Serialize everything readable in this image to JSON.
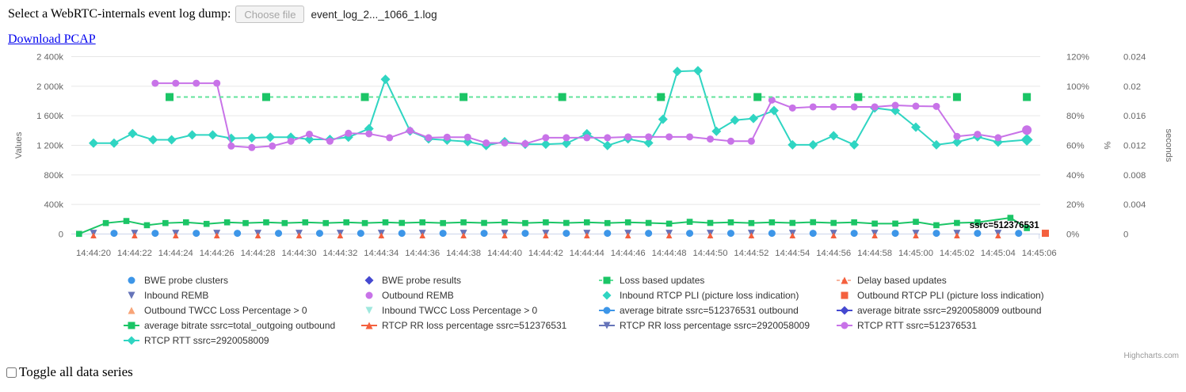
{
  "header": {
    "label": "Select a WebRTC-internals event log dump:",
    "choose_file_label": "Choose file",
    "filename": "event_log_2..._1066_1.log",
    "download_link": "Download PCAP"
  },
  "toggle": {
    "label": "Toggle all data series"
  },
  "credits": "Highcharts.com",
  "chart_data": {
    "type": "line",
    "title": "",
    "x_axis": {
      "labels": [
        "14:44:20",
        "14:44:22",
        "14:44:24",
        "14:44:26",
        "14:44:28",
        "14:44:30",
        "14:44:32",
        "14:44:34",
        "14:44:36",
        "14:44:38",
        "14:44:40",
        "14:44:42",
        "14:44:44",
        "14:44:46",
        "14:44:48",
        "14:44:50",
        "14:44:52",
        "14:44:54",
        "14:44:56",
        "14:44:58",
        "14:45:00",
        "14:45:02",
        "14:45:04",
        "14:45:06"
      ],
      "start_seconds": 20,
      "step_seconds": 2
    },
    "y_axes": [
      {
        "title": "Values",
        "ticks": [
          "0",
          "400k",
          "800k",
          "1 200k",
          "1 600k",
          "2 000k",
          "2 400k"
        ],
        "range": [
          0,
          2400000
        ],
        "side": "left"
      },
      {
        "title": "%",
        "ticks": [
          "0%",
          "20%",
          "40%",
          "60%",
          "80%",
          "100%",
          "120%"
        ],
        "range": [
          0,
          120
        ],
        "side": "right"
      },
      {
        "title": "seconds",
        "ticks": [
          "0",
          "0.004",
          "0.008",
          "0.012",
          "0.016",
          "0.02",
          "0.024"
        ],
        "range": [
          0,
          0.024
        ],
        "side": "right"
      }
    ],
    "grid": true,
    "legend_position": "bottom",
    "annotations": [
      {
        "text": "ssrc=512376531",
        "t": 66.0,
        "v": 125,
        "anchor": "end"
      }
    ],
    "series": [
      {
        "name": "RTCP RTT ssrc=2920058009",
        "color": "#2FD5C2",
        "marker": "diamond",
        "marker_size": 4.5,
        "line": "solid",
        "axis": "seconds",
        "points": [
          [
            20,
            1230
          ],
          [
            21,
            1230
          ],
          [
            21.9,
            1360
          ],
          [
            22.9,
            1275
          ],
          [
            23.8,
            1275
          ],
          [
            24.8,
            1340
          ],
          [
            25.8,
            1340
          ],
          [
            26.7,
            1295
          ],
          [
            27.7,
            1300
          ],
          [
            28.6,
            1310
          ],
          [
            29.6,
            1310
          ],
          [
            30.5,
            1280
          ],
          [
            31.5,
            1280
          ],
          [
            32.4,
            1310
          ],
          [
            33.4,
            1425
          ],
          [
            34.2,
            2093
          ],
          [
            35.4,
            1393
          ],
          [
            36.3,
            1287
          ],
          [
            37.2,
            1269
          ],
          [
            38.2,
            1250
          ],
          [
            39.1,
            1197
          ],
          [
            40,
            1250
          ],
          [
            41,
            1215
          ],
          [
            42,
            1215
          ],
          [
            43,
            1225
          ],
          [
            44,
            1357
          ],
          [
            45,
            1197
          ],
          [
            46,
            1287
          ],
          [
            47,
            1232
          ],
          [
            47.7,
            1552
          ],
          [
            48.4,
            2200
          ],
          [
            49.4,
            2210
          ],
          [
            50.3,
            1390
          ],
          [
            51.2,
            1540
          ],
          [
            52.1,
            1563
          ],
          [
            53.1,
            1670
          ],
          [
            54,
            1207
          ],
          [
            55,
            1207
          ],
          [
            56,
            1330
          ],
          [
            57,
            1207
          ],
          [
            58,
            1705
          ],
          [
            59,
            1670
          ],
          [
            60,
            1445
          ],
          [
            61,
            1207
          ],
          [
            62,
            1243
          ],
          [
            63,
            1315
          ],
          [
            64,
            1243
          ],
          [
            65.4,
            1275
          ]
        ],
        "last_big": true
      },
      {
        "name": "RTCP RTT ssrc=512376531",
        "color": "#C873E8",
        "marker": "circle",
        "marker_size": 4.5,
        "line": "solid",
        "axis": "seconds",
        "points": [
          [
            23,
            2040
          ],
          [
            24,
            2040
          ],
          [
            25,
            2040
          ],
          [
            26,
            2040
          ],
          [
            26.7,
            1190
          ],
          [
            27.7,
            1170
          ],
          [
            28.7,
            1190
          ],
          [
            29.6,
            1255
          ],
          [
            30.5,
            1350
          ],
          [
            31.5,
            1256
          ],
          [
            32.4,
            1363
          ],
          [
            33.4,
            1356
          ],
          [
            34.4,
            1303
          ],
          [
            35.4,
            1399
          ],
          [
            36.3,
            1303
          ],
          [
            37.2,
            1310
          ],
          [
            38.2,
            1310
          ],
          [
            39.1,
            1232
          ],
          [
            40,
            1232
          ],
          [
            41,
            1221
          ],
          [
            42,
            1303
          ],
          [
            43,
            1303
          ],
          [
            44,
            1303
          ],
          [
            45,
            1303
          ],
          [
            46,
            1314
          ],
          [
            47,
            1314
          ],
          [
            48,
            1314
          ],
          [
            49,
            1314
          ],
          [
            50,
            1285
          ],
          [
            51,
            1256
          ],
          [
            52,
            1256
          ],
          [
            53,
            1812
          ],
          [
            54,
            1705
          ],
          [
            55,
            1720
          ],
          [
            56,
            1720
          ],
          [
            57,
            1720
          ],
          [
            58,
            1720
          ],
          [
            59,
            1741
          ],
          [
            60,
            1730
          ],
          [
            61,
            1727
          ],
          [
            62,
            1321
          ],
          [
            63,
            1349
          ],
          [
            64,
            1303
          ],
          [
            65.4,
            1406
          ]
        ],
        "last_big": true
      },
      {
        "name": "Loss based updates",
        "color": "#1BC566",
        "line_color": "#62E39B",
        "marker": "square",
        "marker_size": 5,
        "line": "dashed",
        "axis": "values",
        "points": [
          [
            23.7,
            1853
          ],
          [
            28.4,
            1853
          ],
          [
            33.2,
            1853
          ],
          [
            38,
            1853
          ],
          [
            42.8,
            1853
          ],
          [
            47.6,
            1853
          ],
          [
            52.3,
            1853
          ],
          [
            57.2,
            1853
          ],
          [
            62,
            1853
          ]
        ]
      },
      {
        "name": "Loss based updates (last)",
        "color": "#1BC566",
        "marker": "square",
        "marker_size": 5,
        "line": "none",
        "axis": "values",
        "legend": false,
        "points": [
          [
            65.4,
            1853
          ]
        ]
      },
      {
        "name": "average bitrate ssrc=total_outgoing outbound",
        "color": "#1BC566",
        "marker": "square",
        "marker_size": 3.8,
        "line": "solid",
        "axis": "values",
        "points": [
          [
            19.3,
            2
          ],
          [
            20.6,
            148
          ],
          [
            21.6,
            176
          ],
          [
            22.6,
            119
          ],
          [
            23.5,
            148
          ],
          [
            24.5,
            158
          ],
          [
            25.5,
            137
          ],
          [
            26.5,
            158
          ],
          [
            27.4,
            148
          ],
          [
            28.4,
            158
          ],
          [
            29.3,
            148
          ],
          [
            30.3,
            158
          ],
          [
            31.3,
            148
          ],
          [
            32.3,
            158
          ],
          [
            33.2,
            148
          ],
          [
            34.2,
            158
          ],
          [
            35,
            150
          ],
          [
            36,
            158
          ],
          [
            37,
            148
          ],
          [
            38,
            158
          ],
          [
            39,
            150
          ],
          [
            40,
            158
          ],
          [
            41,
            148
          ],
          [
            42,
            158
          ],
          [
            43,
            150
          ],
          [
            44,
            158
          ],
          [
            45,
            148
          ],
          [
            46,
            158
          ],
          [
            47,
            150
          ],
          [
            48,
            140
          ],
          [
            49,
            165
          ],
          [
            50,
            150
          ],
          [
            51,
            158
          ],
          [
            52,
            148
          ],
          [
            53,
            158
          ],
          [
            54,
            150
          ],
          [
            55,
            160
          ],
          [
            56,
            150
          ],
          [
            57,
            158
          ],
          [
            58,
            141
          ],
          [
            59,
            141
          ],
          [
            60,
            165
          ],
          [
            61,
            119
          ],
          [
            62,
            150
          ],
          [
            63,
            158
          ],
          [
            64.6,
            219
          ],
          [
            65.4,
            80
          ]
        ]
      },
      {
        "name": "RTCP RR loss percentage ssrc=2920058009",
        "color": "#6674B9",
        "marker": "triangle-down",
        "marker_size": 4.5,
        "line": "none",
        "axis": "percent",
        "points": [
          [
            20,
            10
          ],
          [
            22,
            10
          ],
          [
            24,
            10
          ],
          [
            26,
            10
          ],
          [
            28,
            10
          ],
          [
            30,
            10
          ],
          [
            32,
            10
          ],
          [
            34,
            10
          ],
          [
            36,
            10
          ],
          [
            38,
            10
          ],
          [
            40,
            10
          ],
          [
            42,
            10
          ],
          [
            44,
            10
          ],
          [
            46,
            10
          ],
          [
            48,
            10
          ],
          [
            50,
            10
          ],
          [
            52,
            10
          ],
          [
            54,
            10
          ],
          [
            56,
            10
          ],
          [
            58,
            10
          ],
          [
            60,
            10
          ],
          [
            62,
            10
          ],
          [
            64,
            10
          ]
        ]
      },
      {
        "name": "RTCP RR loss percentage ssrc=512376531",
        "color": "#F4603E",
        "marker": "triangle",
        "marker_size": 3.8,
        "line": "none",
        "axis": "percent",
        "points": [
          [
            20,
            -18
          ],
          [
            22,
            -18
          ],
          [
            24,
            -18
          ],
          [
            26,
            -18
          ],
          [
            28,
            -18
          ],
          [
            30,
            -18
          ],
          [
            32,
            -18
          ],
          [
            34,
            -18
          ],
          [
            36,
            -18
          ],
          [
            38,
            -18
          ],
          [
            40,
            -18
          ],
          [
            42,
            -18
          ],
          [
            44,
            -18
          ],
          [
            46,
            -18
          ],
          [
            48,
            -18
          ],
          [
            50,
            -18
          ],
          [
            52,
            -18
          ],
          [
            54,
            -18
          ],
          [
            56,
            -18
          ],
          [
            58,
            -18
          ],
          [
            60,
            -18
          ],
          [
            62,
            -18
          ],
          [
            64,
            -18
          ]
        ]
      },
      {
        "name": "average bitrate ssrc=512376531 outbound",
        "color": "#3D96E8",
        "marker": "circle",
        "marker_size": 4.5,
        "line": "none",
        "axis": "values",
        "points": [
          [
            21,
            10
          ],
          [
            23,
            10
          ],
          [
            25,
            10
          ],
          [
            27,
            10
          ],
          [
            29,
            10
          ],
          [
            31,
            10
          ],
          [
            33,
            10
          ],
          [
            35,
            10
          ],
          [
            37,
            10
          ],
          [
            39,
            10
          ],
          [
            41,
            10
          ],
          [
            43,
            10
          ],
          [
            45,
            10
          ],
          [
            47,
            10
          ],
          [
            49,
            10
          ],
          [
            51,
            10
          ],
          [
            53,
            10
          ],
          [
            55,
            10
          ],
          [
            57,
            10
          ],
          [
            59,
            10
          ],
          [
            61,
            10
          ],
          [
            63,
            10
          ],
          [
            65,
            10
          ]
        ]
      },
      {
        "name": "Outbound RTCP PLI (picture loss indication)",
        "color": "#F4603E",
        "marker": "square",
        "marker_size": 4.5,
        "line": "none",
        "axis": "values",
        "legend": false,
        "points": [
          [
            66.3,
            10
          ]
        ]
      }
    ]
  },
  "legend": {
    "items": [
      {
        "label": "BWE probe clusters",
        "color": "#3D96E8",
        "marker": "circle",
        "line": "none"
      },
      {
        "label": "BWE probe results",
        "color": "#4549D0",
        "marker": "diamond",
        "line": "none"
      },
      {
        "label": "Loss based updates",
        "color": "#1BC566",
        "line_color": "#62E39B",
        "marker": "square",
        "line": "dashed"
      },
      {
        "label": "Delay based updates",
        "color": "#F4603E",
        "line_color": "#F8B49E",
        "marker": "triangle",
        "line": "dashed"
      },
      {
        "label": "Inbound REMB",
        "color": "#6674B9",
        "marker": "triangle-down",
        "line": "none"
      },
      {
        "label": "Outbound REMB",
        "color": "#C873E8",
        "marker": "circle",
        "line": "none"
      },
      {
        "label": "Inbound RTCP PLI (picture loss indication)",
        "color": "#2FD5C2",
        "marker": "diamond",
        "line": "none"
      },
      {
        "label": "Outbound RTCP PLI (picture loss indication)",
        "color": "#F4603E",
        "marker": "square",
        "line": "none"
      },
      {
        "label": "Outbound TWCC Loss Percentage > 0",
        "color": "#F8A478",
        "marker": "triangle",
        "line": "none"
      },
      {
        "label": "Inbound TWCC Loss Percentage > 0",
        "color": "#9FE8DE",
        "marker": "triangle-down",
        "line": "none"
      },
      {
        "label": "average bitrate ssrc=512376531 outbound",
        "color": "#3D96E8",
        "marker": "circle",
        "line": "solid"
      },
      {
        "label": "average bitrate ssrc=2920058009 outbound",
        "color": "#4549D0",
        "marker": "diamond",
        "line": "solid"
      },
      {
        "label": "average bitrate ssrc=total_outgoing outbound",
        "color": "#1BC566",
        "marker": "square",
        "line": "solid"
      },
      {
        "label": "RTCP RR loss percentage ssrc=512376531",
        "color": "#F4603E",
        "marker": "triangle",
        "line": "solid"
      },
      {
        "label": "RTCP RR loss percentage ssrc=2920058009",
        "color": "#6674B9",
        "marker": "triangle-down",
        "line": "solid"
      },
      {
        "label": "RTCP RTT ssrc=512376531",
        "color": "#C873E8",
        "marker": "circle",
        "line": "solid"
      },
      {
        "label": "RTCP RTT ssrc=2920058009",
        "color": "#2FD5C2",
        "marker": "diamond",
        "line": "solid"
      }
    ]
  }
}
